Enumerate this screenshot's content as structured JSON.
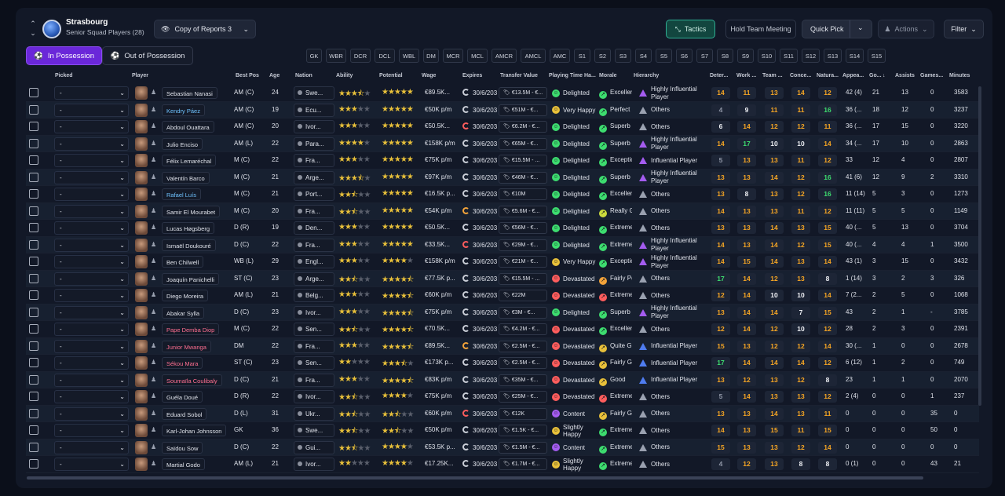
{
  "header": {
    "club": "Strasbourg",
    "squad": "Senior Squad Players (28)",
    "view": "Copy of Reports 3"
  },
  "toolbar": {
    "tactics": "Tactics",
    "meeting": "Hold Team Meeting",
    "quick_pick": "Quick Pick",
    "actions": "Actions",
    "filter": "Filter"
  },
  "possession": {
    "in": "In Possession",
    "out": "Out of Possession"
  },
  "positions": [
    "GK",
    "WBR",
    "DCR",
    "DCL",
    "WBL",
    "DM",
    "MCR",
    "MCL",
    "AMCR",
    "AMCL",
    "AMC",
    "S1",
    "S2",
    "S3",
    "S4",
    "S5",
    "S6",
    "S7",
    "S8",
    "S9",
    "S10",
    "S11",
    "S12",
    "S13",
    "S14",
    "S15"
  ],
  "columns": {
    "picked": "Picked",
    "player": "Player",
    "bestpos": "Best Pos",
    "age": "Age",
    "nation": "Nation",
    "ability": "Ability",
    "potential": "Potential",
    "wage": "Wage",
    "expires": "Expires",
    "value": "Transfer Value",
    "ptime": "Playing Time Ha...",
    "morale": "Morale",
    "hier": "Hierarchy",
    "det": "Deter...",
    "work": "Work ...",
    "team": "Team ...",
    "conc": "Conce...",
    "nat": "Natura...",
    "apps": "Appea...",
    "goals": "Go...",
    "assists": "Assists",
    "games": "Games...",
    "minutes": "Minutes"
  },
  "players": [
    {
      "pick": "-",
      "name": "Sebastian Nanasi",
      "nc": "",
      "pos": "AM (C)",
      "age": "24",
      "nation": "Swe...",
      "ab": 3.5,
      "pot": 5,
      "wage": "€89.5K...",
      "exp": "30/6/2030",
      "ring": "",
      "tv": "€13.5M - €...",
      "pt": "Delighted",
      "ptc": "#3ddc6f",
      "mor": "Excellent",
      "morc": "#3ddc6f",
      "hier": "Highly Influential Player",
      "tri": "p",
      "det": "14",
      "detc": "o",
      "work": "11",
      "workc": "o",
      "team": "13",
      "teamc": "o",
      "conc": "14",
      "concc": "o",
      "natf": "12",
      "natfc": "o",
      "apps": "42 (4)",
      "goals": "21",
      "assists": "13",
      "games": "0",
      "min": "3583"
    },
    {
      "pick": "-",
      "name": "Kendry Páez",
      "nc": "cyan",
      "pos": "AM (C)",
      "age": "19",
      "nation": "Ecu...",
      "ab": 3,
      "pot": 5,
      "wage": "€50K p/m",
      "exp": "30/6/2030",
      "ring": "",
      "tv": "€51M - €...",
      "pt": "Very Happy",
      "ptc": "#e8c03a",
      "mor": "Perfect",
      "morc": "#3ddc6f",
      "hier": "Others",
      "tri": "",
      "det": "4",
      "detc": "d",
      "work": "9",
      "workc": "w",
      "team": "11",
      "teamc": "o",
      "conc": "11",
      "concc": "o",
      "natf": "16",
      "natfc": "g",
      "apps": "36 (...",
      "goals": "18",
      "assists": "12",
      "games": "0",
      "min": "3237"
    },
    {
      "pick": "-",
      "name": "Abdoul Ouattara",
      "nc": "",
      "pos": "AM (C)",
      "age": "20",
      "nation": "Ivor...",
      "ab": 3,
      "pot": 5,
      "wage": "€50.5K...",
      "exp": "30/6/2030",
      "ring": "r",
      "tv": "€6.2M - €...",
      "pt": "Delighted",
      "ptc": "#3ddc6f",
      "mor": "Superb",
      "morc": "#3ddc6f",
      "hier": "Others",
      "tri": "",
      "det": "6",
      "detc": "w",
      "work": "14",
      "workc": "o",
      "team": "12",
      "teamc": "o",
      "conc": "12",
      "concc": "o",
      "natf": "11",
      "natfc": "o",
      "apps": "36 (...",
      "goals": "17",
      "assists": "15",
      "games": "0",
      "min": "3220"
    },
    {
      "pick": "-",
      "name": "Julio Enciso",
      "nc": "",
      "pos": "AM (L)",
      "age": "22",
      "nation": "Para...",
      "ab": 4,
      "pot": 5,
      "wage": "€158K p/m",
      "exp": "30/6/2030",
      "ring": "",
      "tv": "€65M - €...",
      "pt": "Delighted",
      "ptc": "#3ddc6f",
      "mor": "Superb",
      "morc": "#3ddc6f",
      "hier": "Highly Influential Player",
      "tri": "p",
      "det": "14",
      "detc": "o",
      "work": "17",
      "workc": "g",
      "team": "10",
      "teamc": "w",
      "conc": "10",
      "concc": "w",
      "natf": "14",
      "natfc": "o",
      "apps": "34 (...",
      "goals": "17",
      "assists": "10",
      "games": "0",
      "min": "2863"
    },
    {
      "pick": "-",
      "name": "Félix Lemaréchal",
      "nc": "",
      "pos": "M (C)",
      "age": "22",
      "nation": "Fra...",
      "ab": 3,
      "pot": 5,
      "wage": "€75K p/m",
      "exp": "30/6/2030",
      "ring": "",
      "tv": "€15.5M - ...",
      "pt": "Delighted",
      "ptc": "#3ddc6f",
      "mor": "Exceptional",
      "morc": "#3ddc6f",
      "hier": "Influential Player",
      "tri": "p",
      "det": "5",
      "detc": "d",
      "work": "13",
      "workc": "o",
      "team": "13",
      "teamc": "o",
      "conc": "11",
      "concc": "o",
      "natf": "12",
      "natfc": "o",
      "apps": "33",
      "goals": "12",
      "assists": "4",
      "games": "0",
      "min": "2807"
    },
    {
      "pick": "-",
      "name": "Valentín Barco",
      "nc": "",
      "pos": "M (C)",
      "age": "21",
      "nation": "Arge...",
      "ab": 3.5,
      "pot": 5,
      "wage": "€97K p/m",
      "exp": "30/6/2030",
      "ring": "",
      "tv": "€46M - €...",
      "pt": "Delighted",
      "ptc": "#3ddc6f",
      "mor": "Superb",
      "morc": "#3ddc6f",
      "hier": "Highly Influential Player",
      "tri": "p",
      "det": "13",
      "detc": "o",
      "work": "13",
      "workc": "o",
      "team": "14",
      "teamc": "o",
      "conc": "12",
      "concc": "o",
      "natf": "16",
      "natfc": "g",
      "apps": "41 (6)",
      "goals": "12",
      "assists": "9",
      "games": "2",
      "min": "3310"
    },
    {
      "pick": "-",
      "name": "Rafael Luís",
      "nc": "cyan",
      "pos": "M (C)",
      "age": "21",
      "nation": "Port...",
      "ab": 2.5,
      "pot": 5,
      "wage": "€16.5K p...",
      "exp": "30/6/2030",
      "ring": "",
      "tv": "€10M",
      "pt": "Delighted",
      "ptc": "#3ddc6f",
      "mor": "Excellent",
      "morc": "#3ddc6f",
      "hier": "Others",
      "tri": "",
      "det": "13",
      "detc": "o",
      "work": "8",
      "workc": "w",
      "team": "13",
      "teamc": "o",
      "conc": "12",
      "concc": "o",
      "natf": "16",
      "natfc": "g",
      "apps": "11 (14)",
      "goals": "5",
      "assists": "3",
      "games": "0",
      "min": "1273"
    },
    {
      "pick": "-",
      "name": "Samir El Mourabet",
      "nc": "",
      "pos": "M (C)",
      "age": "20",
      "nation": "Fra...",
      "ab": 2.5,
      "pot": 5,
      "wage": "€54K p/m",
      "exp": "30/6/2030",
      "ring": "o",
      "tv": "€5.6M - €...",
      "pt": "Delighted",
      "ptc": "#3ddc6f",
      "mor": "Really Good",
      "morc": "#cddc3d",
      "hier": "Others",
      "tri": "",
      "det": "14",
      "detc": "o",
      "work": "13",
      "workc": "o",
      "team": "13",
      "teamc": "o",
      "conc": "11",
      "concc": "o",
      "natf": "12",
      "natfc": "o",
      "apps": "11 (11)",
      "goals": "5",
      "assists": "5",
      "games": "0",
      "min": "1149"
    },
    {
      "pick": "-",
      "name": "Lucas Høgsberg",
      "nc": "",
      "pos": "D (R)",
      "age": "19",
      "nation": "Den...",
      "ab": 3,
      "pot": 5,
      "wage": "€50.5K...",
      "exp": "30/6/2030",
      "ring": "",
      "tv": "€56M - €...",
      "pt": "Delighted",
      "ptc": "#3ddc6f",
      "mor": "Extremely Good",
      "morc": "#3ddc6f",
      "hier": "Others",
      "tri": "",
      "det": "13",
      "detc": "o",
      "work": "13",
      "workc": "o",
      "team": "14",
      "teamc": "o",
      "conc": "13",
      "concc": "o",
      "natf": "15",
      "natfc": "o",
      "apps": "40 (...",
      "goals": "5",
      "assists": "13",
      "games": "0",
      "min": "3704"
    },
    {
      "pick": "-",
      "name": "Ismaël Doukouré",
      "nc": "",
      "pos": "D (C)",
      "age": "22",
      "nation": "Fra...",
      "ab": 3,
      "pot": 5,
      "wage": "€33.5K...",
      "exp": "30/6/2030",
      "ring": "r",
      "tv": "€29M - €...",
      "pt": "Delighted",
      "ptc": "#3ddc6f",
      "mor": "Extremely Good",
      "morc": "#3ddc6f",
      "hier": "Highly Influential Player",
      "tri": "p",
      "det": "14",
      "detc": "o",
      "work": "13",
      "workc": "o",
      "team": "14",
      "teamc": "o",
      "conc": "12",
      "concc": "o",
      "natf": "15",
      "natfc": "o",
      "apps": "40 (...",
      "goals": "4",
      "assists": "4",
      "games": "1",
      "min": "3500"
    },
    {
      "pick": "-",
      "name": "Ben Chilwell",
      "nc": "",
      "pos": "WB (L)",
      "age": "29",
      "nation": "Engl...",
      "ab": 3,
      "pot": 4,
      "wage": "€158K p/m",
      "exp": "30/6/2030",
      "ring": "",
      "tv": "€21M - €...",
      "pt": "Very Happy",
      "ptc": "#e8c03a",
      "mor": "Exceptional",
      "morc": "#3ddc6f",
      "hier": "Highly Influential Player",
      "tri": "p",
      "det": "14",
      "detc": "o",
      "work": "15",
      "workc": "o",
      "team": "14",
      "teamc": "o",
      "conc": "13",
      "concc": "o",
      "natf": "14",
      "natfc": "o",
      "apps": "43 (1)",
      "goals": "3",
      "assists": "15",
      "games": "0",
      "min": "3432"
    },
    {
      "pick": "-",
      "name": "Joaquín Panichelli",
      "nc": "",
      "pos": "ST (C)",
      "age": "23",
      "nation": "Arge...",
      "ab": 2.5,
      "pot": 4.5,
      "wage": "€77.5K p...",
      "exp": "30/6/2030",
      "ring": "",
      "tv": "€15.5M - ...",
      "pt": "Devastated",
      "ptc": "#ff5d5d",
      "mor": "Fairly Poor",
      "morc": "#f3a33a",
      "hier": "Others",
      "tri": "",
      "det": "17",
      "detc": "g",
      "work": "14",
      "workc": "o",
      "team": "12",
      "teamc": "o",
      "conc": "13",
      "concc": "o",
      "natf": "8",
      "natfc": "w",
      "apps": "1 (14)",
      "goals": "3",
      "assists": "2",
      "games": "3",
      "min": "326"
    },
    {
      "pick": "-",
      "name": "Diego Moreira",
      "nc": "",
      "pos": "AM (L)",
      "age": "21",
      "nation": "Belg...",
      "ab": 3,
      "pot": 4.5,
      "wage": "€60K p/m",
      "exp": "30/6/2030",
      "ring": "",
      "tv": "€22M",
      "pt": "Devastated",
      "ptc": "#ff5d5d",
      "mor": "Extremely Poor",
      "morc": "#ff5d5d",
      "hier": "Others",
      "tri": "",
      "det": "12",
      "detc": "o",
      "work": "14",
      "workc": "o",
      "team": "10",
      "teamc": "w",
      "conc": "10",
      "concc": "w",
      "natf": "14",
      "natfc": "o",
      "apps": "7 (2...",
      "goals": "2",
      "assists": "5",
      "games": "0",
      "min": "1068"
    },
    {
      "pick": "-",
      "name": "Abakar Sylla",
      "nc": "",
      "pos": "D (C)",
      "age": "23",
      "nation": "Ivor...",
      "ab": 3,
      "pot": 4.5,
      "wage": "€75K p/m",
      "exp": "30/6/2030",
      "ring": "",
      "tv": "€3M - €...",
      "pt": "Delighted",
      "ptc": "#3ddc6f",
      "mor": "Superb",
      "morc": "#3ddc6f",
      "hier": "Highly Influential Player",
      "tri": "p",
      "det": "13",
      "detc": "o",
      "work": "14",
      "workc": "o",
      "team": "14",
      "teamc": "o",
      "conc": "7",
      "concc": "w",
      "natf": "15",
      "natfc": "o",
      "apps": "43",
      "goals": "2",
      "assists": "1",
      "games": "-",
      "min": "3785"
    },
    {
      "pick": "-",
      "name": "Pape Demba Diop",
      "nc": "red",
      "pos": "M (C)",
      "age": "22",
      "nation": "Sen...",
      "ab": 2.5,
      "pot": 4.5,
      "wage": "€70.5K...",
      "exp": "30/6/2030",
      "ring": "",
      "tv": "€4.2M - €...",
      "pt": "Devastated",
      "ptc": "#ff5d5d",
      "mor": "Excellent",
      "morc": "#3ddc6f",
      "hier": "Others",
      "tri": "",
      "det": "12",
      "detc": "o",
      "work": "14",
      "workc": "o",
      "team": "12",
      "teamc": "o",
      "conc": "10",
      "concc": "w",
      "natf": "12",
      "natfc": "o",
      "apps": "28",
      "goals": "2",
      "assists": "3",
      "games": "0",
      "min": "2391"
    },
    {
      "pick": "-",
      "name": "Junior Mwanga",
      "nc": "red",
      "pos": "DM",
      "age": "22",
      "nation": "Fra...",
      "ab": 3,
      "pot": 4.5,
      "wage": "€89.5K...",
      "exp": "30/6/2030",
      "ring": "o",
      "tv": "€2.5M - €...",
      "pt": "Devastated",
      "ptc": "#ff5d5d",
      "mor": "Quite Good",
      "morc": "#e8c03a",
      "hier": "Influential Player",
      "tri": "b",
      "det": "15",
      "detc": "o",
      "work": "13",
      "workc": "o",
      "team": "12",
      "teamc": "o",
      "conc": "12",
      "concc": "o",
      "natf": "14",
      "natfc": "o",
      "apps": "30 (...",
      "goals": "1",
      "assists": "0",
      "games": "0",
      "min": "2678"
    },
    {
      "pick": "-",
      "name": "Sékou Mara",
      "nc": "red",
      "pos": "ST (C)",
      "age": "23",
      "nation": "Sen...",
      "ab": 2,
      "pot": 3.5,
      "wage": "€173K p...",
      "exp": "30/6/2030",
      "ring": "",
      "tv": "€2.5M - €...",
      "pt": "Devastated",
      "ptc": "#ff5d5d",
      "mor": "Fairly Good",
      "morc": "#e8c03a",
      "hier": "Influential Player",
      "tri": "b",
      "det": "17",
      "detc": "g",
      "work": "14",
      "workc": "o",
      "team": "14",
      "teamc": "o",
      "conc": "14",
      "concc": "o",
      "natf": "12",
      "natfc": "o",
      "apps": "6 (12)",
      "goals": "1",
      "assists": "2",
      "games": "0",
      "min": "749"
    },
    {
      "pick": "-",
      "name": "Soumaïla Coulibaly",
      "nc": "red",
      "pos": "D (C)",
      "age": "21",
      "nation": "Fra...",
      "ab": 3,
      "pot": 4.5,
      "wage": "€83K p/m",
      "exp": "30/6/2030",
      "ring": "",
      "tv": "€35M - €...",
      "pt": "Devastated",
      "ptc": "#ff5d5d",
      "mor": "Good",
      "morc": "#e8c03a",
      "hier": "Influential Player",
      "tri": "b",
      "det": "13",
      "detc": "o",
      "work": "12",
      "workc": "o",
      "team": "13",
      "teamc": "o",
      "conc": "12",
      "concc": "o",
      "natf": "8",
      "natfc": "w",
      "apps": "23",
      "goals": "1",
      "assists": "1",
      "games": "0",
      "min": "2070"
    },
    {
      "pick": "-",
      "name": "Guéla Doué",
      "nc": "",
      "pos": "D (R)",
      "age": "22",
      "nation": "Ivor...",
      "ab": 2.5,
      "pot": 4,
      "wage": "€75K p/m",
      "exp": "30/6/2030",
      "ring": "",
      "tv": "€25M - €...",
      "pt": "Devastated",
      "ptc": "#ff5d5d",
      "mor": "Extremely Poor",
      "morc": "#ff5d5d",
      "hier": "Others",
      "tri": "",
      "det": "5",
      "detc": "d",
      "work": "14",
      "workc": "o",
      "team": "13",
      "teamc": "o",
      "conc": "13",
      "concc": "o",
      "natf": "12",
      "natfc": "o",
      "apps": "2 (4)",
      "goals": "0",
      "assists": "0",
      "games": "1",
      "min": "237"
    },
    {
      "pick": "-",
      "name": "Eduard Sobol",
      "nc": "",
      "pos": "D (L)",
      "age": "31",
      "nation": "Ukr...",
      "ab": 2.5,
      "pot": 2.5,
      "wage": "€60K p/m",
      "exp": "30/6/2030",
      "ring": "r",
      "tv": "€12K",
      "pt": "Content",
      "ptc": "#a45cf0",
      "mor": "Fairly Good",
      "morc": "#e8c03a",
      "hier": "Others",
      "tri": "",
      "det": "13",
      "detc": "o",
      "work": "13",
      "workc": "o",
      "team": "14",
      "teamc": "o",
      "conc": "13",
      "concc": "o",
      "natf": "11",
      "natfc": "o",
      "apps": "0",
      "goals": "0",
      "assists": "0",
      "games": "35",
      "min": "0"
    },
    {
      "pick": "-",
      "name": "Karl-Johan Johnsson",
      "nc": "",
      "pos": "GK",
      "age": "36",
      "nation": "Swe...",
      "ab": 2.5,
      "pot": 2.5,
      "wage": "€50K p/m",
      "exp": "30/6/2030",
      "ring": "",
      "tv": "€1.5K - €...",
      "pt": "Slightly Happy",
      "ptc": "#e8c03a",
      "mor": "Extremely Good",
      "morc": "#3ddc6f",
      "hier": "Others",
      "tri": "",
      "det": "14",
      "detc": "o",
      "work": "13",
      "workc": "o",
      "team": "15",
      "teamc": "o",
      "conc": "11",
      "concc": "o",
      "natf": "15",
      "natfc": "o",
      "apps": "0",
      "goals": "0",
      "assists": "0",
      "games": "50",
      "min": "0"
    },
    {
      "pick": "-",
      "name": "Saïdou Sow",
      "nc": "",
      "pos": "D (C)",
      "age": "22",
      "nation": "Gui...",
      "ab": 2.5,
      "pot": 4,
      "wage": "€53.5K p...",
      "exp": "30/6/2030",
      "ring": "",
      "tv": "€1.5M - €...",
      "pt": "Content",
      "ptc": "#a45cf0",
      "mor": "Extremely Good",
      "morc": "#3ddc6f",
      "hier": "Others",
      "tri": "",
      "det": "15",
      "detc": "o",
      "work": "13",
      "workc": "o",
      "team": "13",
      "teamc": "o",
      "conc": "12",
      "concc": "o",
      "natf": "14",
      "natfc": "o",
      "apps": "0",
      "goals": "0",
      "assists": "0",
      "games": "0",
      "min": "0"
    },
    {
      "pick": "-",
      "name": "Martial Godo",
      "nc": "",
      "pos": "AM (L)",
      "age": "21",
      "nation": "Ivor...",
      "ab": 2,
      "pot": 4,
      "wage": "€17.25K...",
      "exp": "30/6/2030",
      "ring": "",
      "tv": "€1.7M - €...",
      "pt": "Slightly Happy",
      "ptc": "#e8c03a",
      "mor": "Extremely Good",
      "morc": "#3ddc6f",
      "hier": "Others",
      "tri": "",
      "det": "4",
      "detc": "d",
      "work": "12",
      "workc": "o",
      "team": "13",
      "teamc": "o",
      "conc": "8",
      "concc": "w",
      "natf": "8",
      "natfc": "w",
      "apps": "0 (1)",
      "goals": "0",
      "assists": "0",
      "games": "43",
      "min": "21"
    }
  ]
}
